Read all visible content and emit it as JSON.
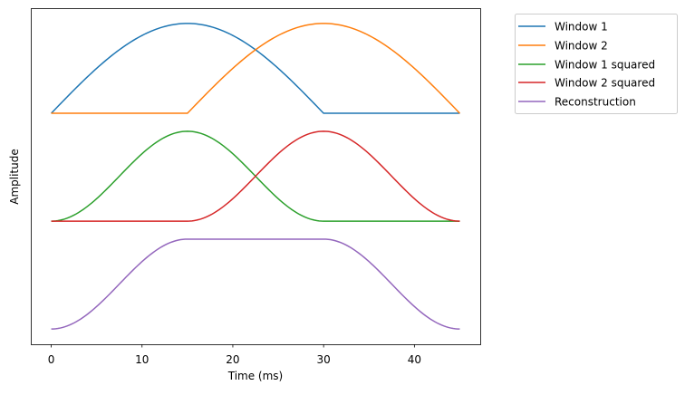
{
  "chart_data": {
    "type": "line",
    "title": "",
    "xlabel": "Time (ms)",
    "ylabel": "Amplitude",
    "xlim": [
      -2.25,
      47.25
    ],
    "ylim": [
      -0.17,
      3.57
    ],
    "xticks": [
      0,
      10,
      20,
      30,
      40
    ],
    "xtick_labels": [
      "0",
      "10",
      "20",
      "30",
      "40"
    ],
    "yticks": [],
    "grid": false,
    "legend_position": "outside-top-right",
    "x_range": [
      0,
      45
    ],
    "series": [
      {
        "name": "Window 1",
        "color": "#1f77b4",
        "window": "sine",
        "start": 0,
        "end": 30,
        "power": 1,
        "offset": 2.4
      },
      {
        "name": "Window 2",
        "color": "#ff7f0e",
        "window": "sine",
        "start": 15,
        "end": 45,
        "power": 1,
        "offset": 2.4
      },
      {
        "name": "Window 1 squared",
        "color": "#2ca02c",
        "window": "sine",
        "start": 0,
        "end": 30,
        "power": 2,
        "offset": 1.2
      },
      {
        "name": "Window 2 squared",
        "color": "#d62728",
        "window": "sine",
        "start": 15,
        "end": 45,
        "power": 2,
        "offset": 1.2
      },
      {
        "name": "Reconstruction",
        "color": "#9467bd",
        "window": "sum-of-squares",
        "start": 0,
        "end": 45,
        "power": 2,
        "offset": 0
      }
    ]
  }
}
